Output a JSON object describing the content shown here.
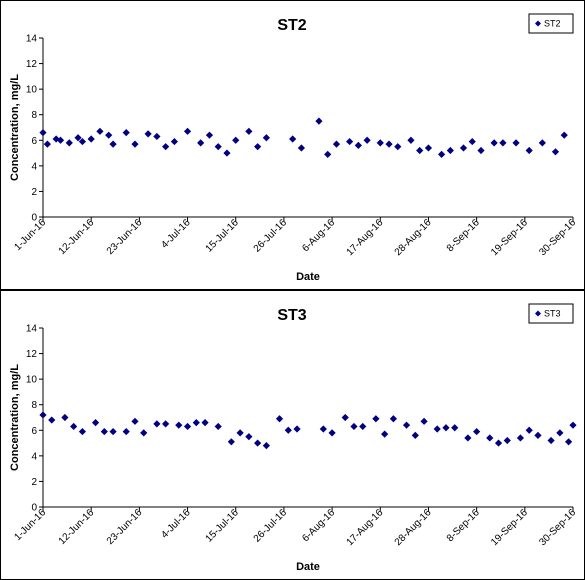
{
  "chart_data": [
    {
      "type": "scatter",
      "title": "ST2",
      "xlabel": "Date",
      "ylabel": "Concentration, mg/L",
      "ylim": [
        0,
        14
      ],
      "yticks": [
        "0",
        "2",
        "4",
        "6",
        "8",
        "10",
        "12",
        "14"
      ],
      "xlim": [
        "2016-06-01",
        "2016-09-30"
      ],
      "xticks": [
        {
          "date": "2016-06-01",
          "label": "1-Jun-16"
        },
        {
          "date": "2016-06-12",
          "label": "12-Jun-16"
        },
        {
          "date": "2016-06-23",
          "label": "23-Jun-16"
        },
        {
          "date": "2016-07-04",
          "label": "4-Jul-16"
        },
        {
          "date": "2016-07-15",
          "label": "15-Jul-16"
        },
        {
          "date": "2016-07-26",
          "label": "26-Jul-16"
        },
        {
          "date": "2016-08-06",
          "label": "6-Aug-16"
        },
        {
          "date": "2016-08-17",
          "label": "17-Aug-16"
        },
        {
          "date": "2016-08-28",
          "label": "28-Aug-16"
        },
        {
          "date": "2016-09-08",
          "label": "8-Sep-16"
        },
        {
          "date": "2016-09-19",
          "label": "19-Sep-16"
        },
        {
          "date": "2016-09-30",
          "label": "30-Sep-16"
        }
      ],
      "grid": false,
      "legend_position": "top-right",
      "marker_color": "#000080",
      "series": [
        {
          "name": "ST2",
          "points": [
            {
              "x": "2016-06-01",
              "y": 6.6
            },
            {
              "x": "2016-06-02",
              "y": 5.7
            },
            {
              "x": "2016-06-04",
              "y": 6.1
            },
            {
              "x": "2016-06-05",
              "y": 6.0
            },
            {
              "x": "2016-06-07",
              "y": 5.8
            },
            {
              "x": "2016-06-09",
              "y": 6.2
            },
            {
              "x": "2016-06-10",
              "y": 5.9
            },
            {
              "x": "2016-06-12",
              "y": 6.1
            },
            {
              "x": "2016-06-14",
              "y": 6.7
            },
            {
              "x": "2016-06-16",
              "y": 6.4
            },
            {
              "x": "2016-06-17",
              "y": 5.7
            },
            {
              "x": "2016-06-20",
              "y": 6.6
            },
            {
              "x": "2016-06-22",
              "y": 5.7
            },
            {
              "x": "2016-06-25",
              "y": 6.5
            },
            {
              "x": "2016-06-27",
              "y": 6.3
            },
            {
              "x": "2016-06-29",
              "y": 5.5
            },
            {
              "x": "2016-07-01",
              "y": 5.9
            },
            {
              "x": "2016-07-04",
              "y": 6.7
            },
            {
              "x": "2016-07-07",
              "y": 5.8
            },
            {
              "x": "2016-07-09",
              "y": 6.4
            },
            {
              "x": "2016-07-11",
              "y": 5.5
            },
            {
              "x": "2016-07-13",
              "y": 5.0
            },
            {
              "x": "2016-07-15",
              "y": 6.0
            },
            {
              "x": "2016-07-18",
              "y": 6.7
            },
            {
              "x": "2016-07-20",
              "y": 5.5
            },
            {
              "x": "2016-07-22",
              "y": 6.2
            },
            {
              "x": "2016-07-28",
              "y": 6.1
            },
            {
              "x": "2016-07-30",
              "y": 5.4
            },
            {
              "x": "2016-08-03",
              "y": 7.5
            },
            {
              "x": "2016-08-05",
              "y": 4.9
            },
            {
              "x": "2016-08-07",
              "y": 5.7
            },
            {
              "x": "2016-08-10",
              "y": 5.9
            },
            {
              "x": "2016-08-12",
              "y": 5.6
            },
            {
              "x": "2016-08-14",
              "y": 6.0
            },
            {
              "x": "2016-08-17",
              "y": 5.8
            },
            {
              "x": "2016-08-19",
              "y": 5.7
            },
            {
              "x": "2016-08-21",
              "y": 5.5
            },
            {
              "x": "2016-08-24",
              "y": 6.0
            },
            {
              "x": "2016-08-26",
              "y": 5.2
            },
            {
              "x": "2016-08-28",
              "y": 5.4
            },
            {
              "x": "2016-08-31",
              "y": 4.9
            },
            {
              "x": "2016-09-02",
              "y": 5.2
            },
            {
              "x": "2016-09-05",
              "y": 5.4
            },
            {
              "x": "2016-09-07",
              "y": 5.9
            },
            {
              "x": "2016-09-09",
              "y": 5.2
            },
            {
              "x": "2016-09-12",
              "y": 5.8
            },
            {
              "x": "2016-09-14",
              "y": 5.8
            },
            {
              "x": "2016-09-17",
              "y": 5.8
            },
            {
              "x": "2016-09-20",
              "y": 5.2
            },
            {
              "x": "2016-09-23",
              "y": 5.8
            },
            {
              "x": "2016-09-26",
              "y": 5.1
            },
            {
              "x": "2016-09-28",
              "y": 6.4
            }
          ]
        }
      ]
    },
    {
      "type": "scatter",
      "title": "ST3",
      "xlabel": "Date",
      "ylabel": "Concentration, mg/L",
      "ylim": [
        0,
        14
      ],
      "yticks": [
        "0",
        "2",
        "4",
        "6",
        "8",
        "10",
        "12",
        "14"
      ],
      "xlim": [
        "2016-06-01",
        "2016-09-30"
      ],
      "xticks": [
        {
          "date": "2016-06-01",
          "label": "1-Jun-16"
        },
        {
          "date": "2016-06-12",
          "label": "12-Jun-16"
        },
        {
          "date": "2016-06-23",
          "label": "23-Jun-16"
        },
        {
          "date": "2016-07-04",
          "label": "4-Jul-16"
        },
        {
          "date": "2016-07-15",
          "label": "15-Jul-16"
        },
        {
          "date": "2016-07-26",
          "label": "26-Jul-16"
        },
        {
          "date": "2016-08-06",
          "label": "6-Aug-16"
        },
        {
          "date": "2016-08-17",
          "label": "17-Aug-16"
        },
        {
          "date": "2016-08-28",
          "label": "28-Aug-16"
        },
        {
          "date": "2016-09-08",
          "label": "8-Sep-16"
        },
        {
          "date": "2016-09-19",
          "label": "19-Sep-16"
        },
        {
          "date": "2016-09-30",
          "label": "30-Sep-16"
        }
      ],
      "grid": false,
      "legend_position": "top-right",
      "marker_color": "#000080",
      "series": [
        {
          "name": "ST3",
          "points": [
            {
              "x": "2016-06-01",
              "y": 7.2
            },
            {
              "x": "2016-06-03",
              "y": 6.8
            },
            {
              "x": "2016-06-06",
              "y": 7.0
            },
            {
              "x": "2016-06-08",
              "y": 6.3
            },
            {
              "x": "2016-06-10",
              "y": 5.9
            },
            {
              "x": "2016-06-13",
              "y": 6.6
            },
            {
              "x": "2016-06-15",
              "y": 5.9
            },
            {
              "x": "2016-06-17",
              "y": 5.9
            },
            {
              "x": "2016-06-20",
              "y": 5.9
            },
            {
              "x": "2016-06-22",
              "y": 6.7
            },
            {
              "x": "2016-06-24",
              "y": 5.8
            },
            {
              "x": "2016-06-27",
              "y": 6.5
            },
            {
              "x": "2016-06-29",
              "y": 6.5
            },
            {
              "x": "2016-07-02",
              "y": 6.4
            },
            {
              "x": "2016-07-04",
              "y": 6.3
            },
            {
              "x": "2016-07-06",
              "y": 6.6
            },
            {
              "x": "2016-07-08",
              "y": 6.6
            },
            {
              "x": "2016-07-11",
              "y": 6.3
            },
            {
              "x": "2016-07-14",
              "y": 5.1
            },
            {
              "x": "2016-07-16",
              "y": 5.8
            },
            {
              "x": "2016-07-18",
              "y": 5.5
            },
            {
              "x": "2016-07-20",
              "y": 5.0
            },
            {
              "x": "2016-07-22",
              "y": 4.8
            },
            {
              "x": "2016-07-25",
              "y": 6.9
            },
            {
              "x": "2016-07-27",
              "y": 6.0
            },
            {
              "x": "2016-07-29",
              "y": 6.1
            },
            {
              "x": "2016-08-04",
              "y": 6.1
            },
            {
              "x": "2016-08-06",
              "y": 5.8
            },
            {
              "x": "2016-08-09",
              "y": 7.0
            },
            {
              "x": "2016-08-11",
              "y": 6.3
            },
            {
              "x": "2016-08-13",
              "y": 6.3
            },
            {
              "x": "2016-08-16",
              "y": 6.9
            },
            {
              "x": "2016-08-18",
              "y": 5.7
            },
            {
              "x": "2016-08-20",
              "y": 6.9
            },
            {
              "x": "2016-08-23",
              "y": 6.4
            },
            {
              "x": "2016-08-25",
              "y": 5.6
            },
            {
              "x": "2016-08-27",
              "y": 6.7
            },
            {
              "x": "2016-08-30",
              "y": 6.1
            },
            {
              "x": "2016-09-01",
              "y": 6.2
            },
            {
              "x": "2016-09-03",
              "y": 6.2
            },
            {
              "x": "2016-09-06",
              "y": 5.4
            },
            {
              "x": "2016-09-08",
              "y": 5.9
            },
            {
              "x": "2016-09-11",
              "y": 5.4
            },
            {
              "x": "2016-09-13",
              "y": 5.0
            },
            {
              "x": "2016-09-15",
              "y": 5.2
            },
            {
              "x": "2016-09-18",
              "y": 5.4
            },
            {
              "x": "2016-09-20",
              "y": 6.0
            },
            {
              "x": "2016-09-22",
              "y": 5.6
            },
            {
              "x": "2016-09-25",
              "y": 5.2
            },
            {
              "x": "2016-09-27",
              "y": 5.8
            },
            {
              "x": "2016-09-29",
              "y": 5.1
            },
            {
              "x": "2016-09-30",
              "y": 6.4
            }
          ]
        }
      ]
    }
  ]
}
